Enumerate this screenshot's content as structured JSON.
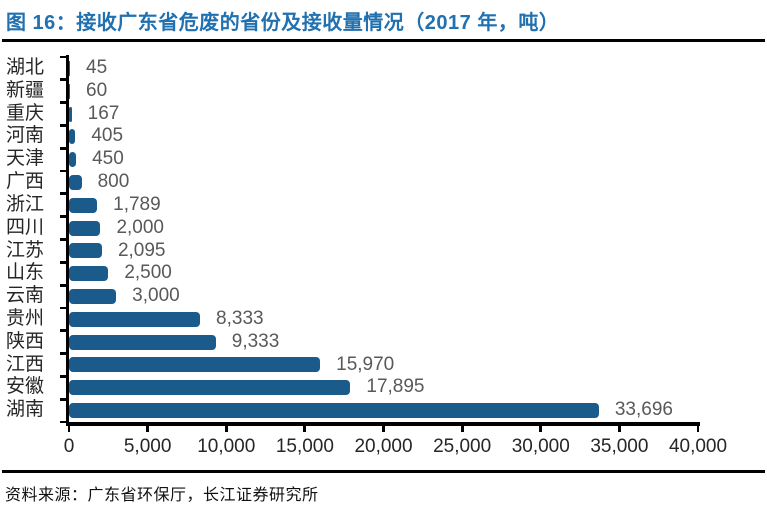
{
  "figure": {
    "title": "图 16：接收广东省危废的省份及接收量情况（2017 年，吨）",
    "source": "资料来源：广东省环保厅，长江证券研究所"
  },
  "colors": {
    "bar": "#1B5B8C",
    "title": "#2170AF",
    "value_label": "#595959",
    "axis_label": "#262626",
    "axis_line": "#000000"
  },
  "chart_data": {
    "type": "bar",
    "orientation": "horizontal",
    "title": "接收广东省危废的省份及接收量情况（2017 年，吨）",
    "categories": [
      "湖北",
      "新疆",
      "重庆",
      "河南",
      "天津",
      "广西",
      "浙江",
      "四川",
      "江苏",
      "山东",
      "云南",
      "贵州",
      "陕西",
      "江西",
      "安徽",
      "湖南"
    ],
    "values": [
      45,
      60,
      167,
      405,
      450,
      800,
      1789,
      2000,
      2095,
      2500,
      3000,
      8333,
      9333,
      15970,
      17895,
      33696
    ],
    "value_labels": [
      "45",
      "60",
      "167",
      "405",
      "450",
      "800",
      "1,789",
      "2,000",
      "2,095",
      "2,500",
      "3,000",
      "8,333",
      "9,333",
      "15,970",
      "17,895",
      "33,696"
    ],
    "xlim": [
      0,
      40000
    ],
    "xticks": [
      0,
      5000,
      10000,
      15000,
      20000,
      25000,
      30000,
      35000,
      40000
    ],
    "xtick_labels": [
      "0",
      "5,000",
      "10,000",
      "15,000",
      "20,000",
      "25,000",
      "30,000",
      "35,000",
      "40,000"
    ],
    "grid": false,
    "legend": false,
    "data_labels": "outside-end"
  }
}
